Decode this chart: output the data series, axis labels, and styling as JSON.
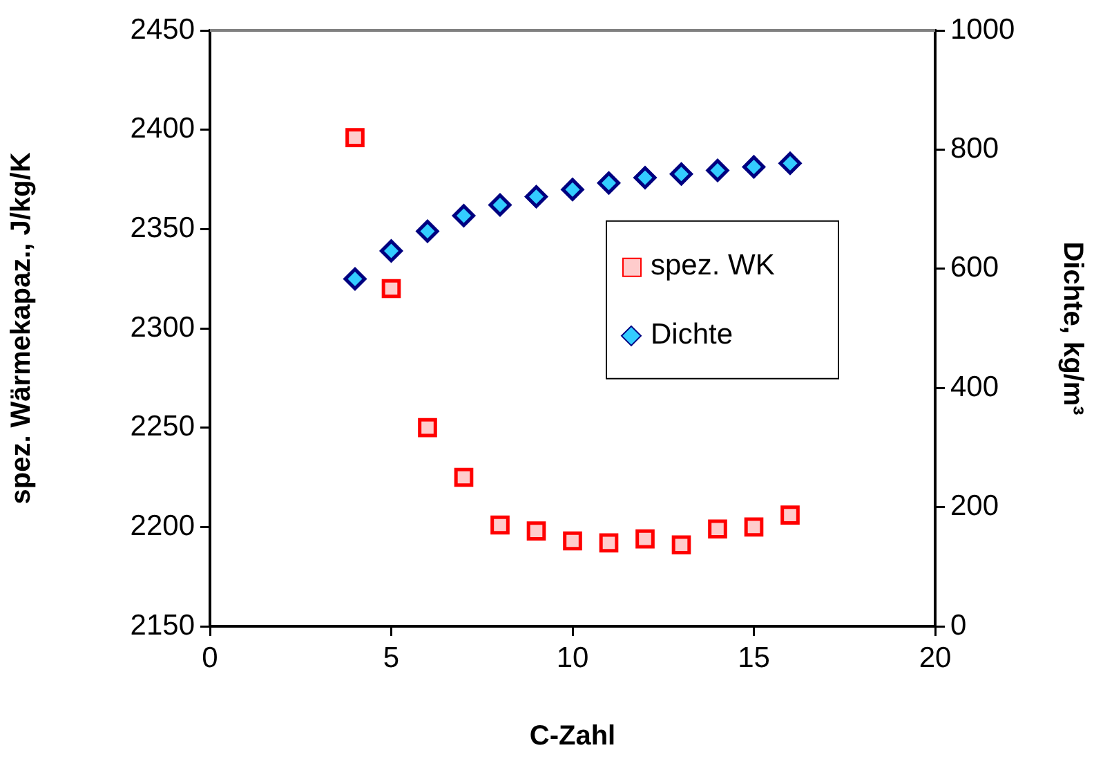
{
  "chart_data": {
    "type": "scatter",
    "xlabel": "C-Zahl",
    "ylabel": "spez. Wärmekapaz., J/kg/K",
    "y2label": "Dichte, kg/m³",
    "x": [
      4,
      5,
      6,
      7,
      8,
      9,
      10,
      11,
      12,
      13,
      14,
      15,
      16
    ],
    "series": [
      {
        "name": "spez. WK",
        "color": "#ff0000",
        "marker": "square",
        "values": [
          2396,
          2320,
          2250,
          2225,
          2201,
          2198,
          2193,
          2192,
          2194,
          2191,
          2199,
          2200,
          2206
        ]
      },
      {
        "name": "Dichte",
        "color": "#33ccff",
        "marker": "diamond",
        "axis": "y2",
        "values": [
          583,
          630,
          663,
          689,
          707,
          721,
          733,
          744,
          753,
          759,
          765,
          771,
          777
        ]
      }
    ],
    "xlim": [
      0,
      20
    ],
    "xticks": [
      0,
      5,
      10,
      15,
      20
    ],
    "ylim": [
      2150,
      2450
    ],
    "yticks": [
      2150,
      2200,
      2250,
      2300,
      2350,
      2400,
      2450
    ],
    "y2lim": [
      0,
      1000
    ],
    "y2ticks": [
      0,
      200,
      400,
      600,
      800,
      1000
    ],
    "grid": false,
    "legend": "right"
  }
}
